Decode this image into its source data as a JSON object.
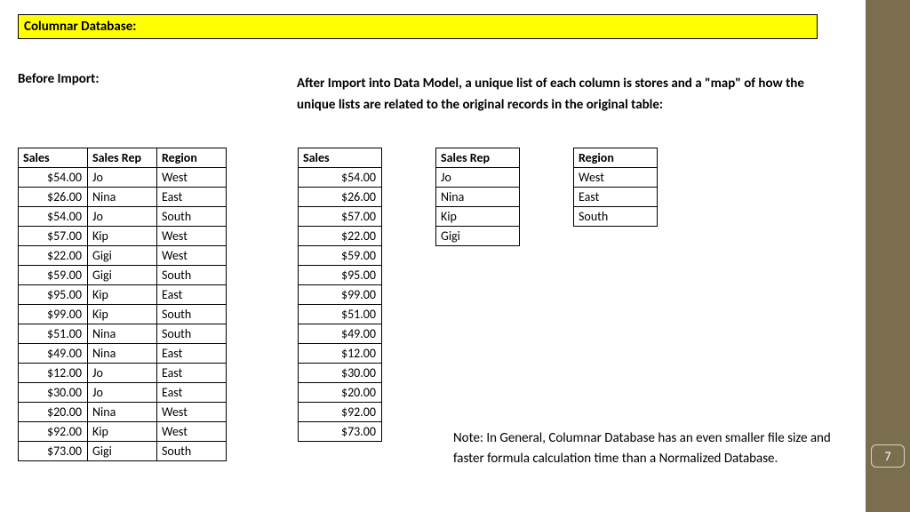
{
  "title": "Columnar Database:",
  "before_label": "Before Import:",
  "after_label": "After Import into Data Model, a unique list of each column is stores and a \"map\" of how the unique lists are related to the original records in the original table:",
  "page_number": "7",
  "before_table": {
    "headers": [
      "Sales",
      "Sales Rep",
      "Region"
    ],
    "rows": [
      [
        "$54.00",
        "Jo",
        "West"
      ],
      [
        "$26.00",
        "Nina",
        "East"
      ],
      [
        "$54.00",
        "Jo",
        "South"
      ],
      [
        "$57.00",
        "Kip",
        "West"
      ],
      [
        "$22.00",
        "Gigi",
        "West"
      ],
      [
        "$59.00",
        "Gigi",
        "South"
      ],
      [
        "$95.00",
        "Kip",
        "East"
      ],
      [
        "$99.00",
        "Kip",
        "South"
      ],
      [
        "$51.00",
        "Nina",
        "South"
      ],
      [
        "$49.00",
        "Nina",
        "East"
      ],
      [
        "$12.00",
        "Jo",
        "East"
      ],
      [
        "$30.00",
        "Jo",
        "East"
      ],
      [
        "$20.00",
        "Nina",
        "West"
      ],
      [
        "$92.00",
        "Kip",
        "West"
      ],
      [
        "$73.00",
        "Gigi",
        "South"
      ]
    ]
  },
  "sales_col": {
    "header": "Sales",
    "values": [
      "$54.00",
      "$26.00",
      "$57.00",
      "$22.00",
      "$59.00",
      "$95.00",
      "$99.00",
      "$51.00",
      "$49.00",
      "$12.00",
      "$30.00",
      "$20.00",
      "$92.00",
      "$73.00"
    ]
  },
  "rep_col": {
    "header": "Sales Rep",
    "values": [
      "Jo",
      "Nina",
      "Kip",
      "Gigi"
    ]
  },
  "region_col": {
    "header": "Region",
    "values": [
      "West",
      "East",
      "South"
    ]
  },
  "note": "Note: In General, Columnar Database has an even smaller file size and faster formula calculation time than a Normalized Database.",
  "colors": {
    "title_bg": "#ffff00",
    "side_stripe": "#7a6e4f",
    "border": "#000000",
    "page_bg": "#ffffff"
  }
}
